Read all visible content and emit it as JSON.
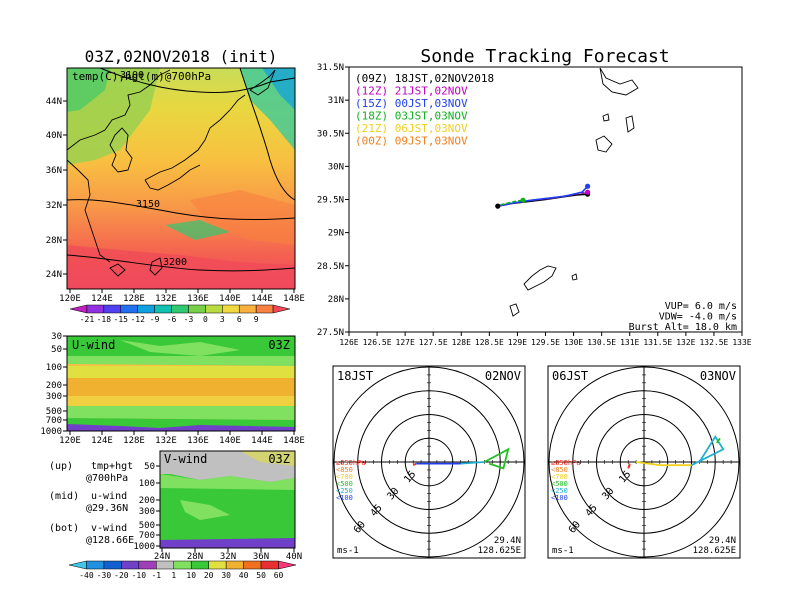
{
  "left": {
    "title": "03Z,02NOV2018 (init)",
    "map": {
      "label": "temp(C),hgt(m)@700hPa",
      "lat_ticks": [
        "44N",
        "40N",
        "36N",
        "32N",
        "28N",
        "24N"
      ],
      "lon_ticks": [
        "120E",
        "124E",
        "128E",
        "132E",
        "136E",
        "140E",
        "144E",
        "148E"
      ],
      "contour_labels": [
        "3100",
        "3150",
        "3200"
      ]
    },
    "temp_colorbar": {
      "labels": [
        "-21",
        "-18",
        "-15",
        "-12",
        "-9",
        "-6",
        "-3",
        "0",
        "3",
        "6",
        "9"
      ],
      "colors": [
        "#c020c0",
        "#9030e0",
        "#5040f0",
        "#2070f0",
        "#10a0e0",
        "#10c0b0",
        "#30c870",
        "#78d048",
        "#b8dc40",
        "#f0d840",
        "#f8b040",
        "#f88040",
        "#f04858"
      ]
    },
    "uwind": {
      "label": "U-wind",
      "time": "03Z",
      "p_ticks": [
        "30",
        "50",
        "100",
        "200",
        "300",
        "500",
        "700",
        "1000"
      ],
      "lon_ticks": [
        "120E",
        "124E",
        "128E",
        "132E",
        "136E",
        "140E",
        "144E",
        "148E"
      ]
    },
    "vwind": {
      "label": "V-wind",
      "time": "03Z",
      "p_ticks": [
        "50",
        "100",
        "200",
        "300",
        "500",
        "700",
        "1000"
      ],
      "lat_ticks": [
        "24N",
        "28N",
        "32N",
        "36N",
        "40N"
      ]
    },
    "notes": [
      {
        "k": "(up)",
        "v": "tmp+hgt"
      },
      {
        "k": "",
        "v": "@700hPa"
      },
      {
        "k": "(mid)",
        "v": "u-wind"
      },
      {
        "k": "",
        "v": "@29.36N"
      },
      {
        "k": "(bot)",
        "v": "v-wind"
      },
      {
        "k": "",
        "v": "@128.66E"
      }
    ],
    "wind_colorbar": {
      "labels": [
        "-40",
        "-30",
        "-20",
        "-10",
        "-1",
        "1",
        "10",
        "20",
        "30",
        "40",
        "50",
        "60"
      ],
      "colors": [
        "#40c8e8",
        "#2090e0",
        "#1060d0",
        "#7040c8",
        "#a040b8",
        "#c0c0c0",
        "#80e060",
        "#38c838",
        "#e0e040",
        "#f0b030",
        "#f07020",
        "#e83030",
        "#f83878"
      ]
    }
  },
  "right": {
    "title": "Sonde Tracking Forecast",
    "lat_ticks": [
      "31.5N",
      "31N",
      "30.5N",
      "30N",
      "29.5N",
      "29N",
      "28.5N",
      "28N",
      "27.5N"
    ],
    "lon_ticks": [
      "126E",
      "126.5E",
      "127E",
      "127.5E",
      "128E",
      "128.5E",
      "129E",
      "129.5E",
      "130E",
      "130.5E",
      "131E",
      "131.5E",
      "132E",
      "132.5E",
      "133E"
    ],
    "legend": [
      {
        "label": "(09Z)  18JST,02NOV2018",
        "color": "#000000"
      },
      {
        "label": "(12Z)  21JST,02NOV",
        "color": "#c000c0"
      },
      {
        "label": "(15Z)  00JST,03NOV",
        "color": "#2040f0"
      },
      {
        "label": "(18Z)  03JST,03NOV",
        "color": "#10b020"
      },
      {
        "label": "(21Z)  06JST,03NOV",
        "color": "#f0d020"
      },
      {
        "label": "(00Z)  09JST,03NOV",
        "color": "#f08020"
      }
    ],
    "params": [
      "VUP=  6.0 m/s",
      "VDW= -4.0 m/s",
      "Burst Alt=  18.0  km"
    ]
  },
  "hodos": [
    {
      "tl": "18JST",
      "tr": "02NOV",
      "rings": [
        "15",
        "30",
        "45",
        "60"
      ],
      "unit": "ms-1",
      "lat": "29.4N",
      "lon": "128.625E"
    },
    {
      "tl": "06JST",
      "tr": "03NOV",
      "rings": [
        "15",
        "30",
        "45",
        "60"
      ],
      "unit": "ms-1",
      "lat": "29.4N",
      "lon": "128.625E"
    }
  ],
  "hodo_legend": [
    {
      "label": "≥850hPa",
      "color": "#f03020"
    },
    {
      "label": "<850",
      "color": "#f08020"
    },
    {
      "label": "<700",
      "color": "#f0d020"
    },
    {
      "label": "<500",
      "color": "#20c020"
    },
    {
      "label": "<250",
      "color": "#20b0d0"
    },
    {
      "label": "<100",
      "color": "#2040f0"
    }
  ],
  "chart_data": {
    "type": "line",
    "title": "Sonde Tracking Forecast",
    "xlim": [
      126,
      133
    ],
    "ylim": [
      27.5,
      31.5
    ],
    "series": [
      {
        "name": "(09Z)",
        "color": "#000000",
        "x": [
          128.65,
          128.9,
          129.2,
          129.5,
          129.8,
          130.05,
          130.25
        ],
        "y": [
          29.4,
          29.44,
          29.47,
          29.5,
          29.54,
          29.57,
          29.58
        ]
      },
      {
        "name": "(12Z)",
        "color": "#c000c0",
        "x": [
          128.65,
          128.95,
          129.25,
          129.6,
          129.9,
          130.15,
          130.25
        ],
        "y": [
          29.4,
          29.45,
          29.49,
          29.52,
          29.56,
          29.6,
          29.61
        ]
      },
      {
        "name": "(15Z)",
        "color": "#2040f0",
        "x": [
          128.65,
          128.95,
          129.25,
          129.55,
          129.85,
          130.15,
          130.25
        ],
        "y": [
          29.4,
          29.45,
          29.49,
          29.52,
          29.55,
          29.61,
          29.7
        ]
      },
      {
        "name": "(18Z)",
        "color": "#10b020",
        "x": [
          128.7,
          128.95,
          129.1
        ],
        "y": [
          29.42,
          29.47,
          29.49
        ]
      }
    ],
    "hodograph_02NOV": {
      "segments": [
        {
          "color": "#f03020",
          "u": [
            -10,
            -8
          ],
          "v": [
            -2,
            -1
          ]
        },
        {
          "color": "#2040f0",
          "u": [
            -8,
            0,
            20
          ],
          "v": [
            -1,
            -1,
            -1
          ]
        },
        {
          "color": "#20b0d0",
          "u": [
            20,
            35
          ],
          "v": [
            -1,
            0
          ]
        },
        {
          "color": "#20c020",
          "u": [
            35,
            50,
            47,
            38
          ],
          "v": [
            0,
            8,
            -4,
            -1
          ]
        }
      ]
    },
    "hodograph_03NOV": {
      "segments": [
        {
          "color": "#f03020",
          "u": [
            -9,
            -10,
            -9
          ],
          "v": [
            -2,
            -4,
            -1
          ]
        },
        {
          "color": "#f0d020",
          "u": [
            -5,
            10,
            30
          ],
          "v": [
            0,
            -2,
            -2
          ]
        },
        {
          "color": "#20b0d0",
          "u": [
            30,
            50,
            45,
            35
          ],
          "v": [
            -2,
            8,
            16,
            0
          ]
        },
        {
          "color": "#20c020",
          "u": [
            46,
            48
          ],
          "v": [
            12,
            15
          ]
        }
      ]
    }
  }
}
